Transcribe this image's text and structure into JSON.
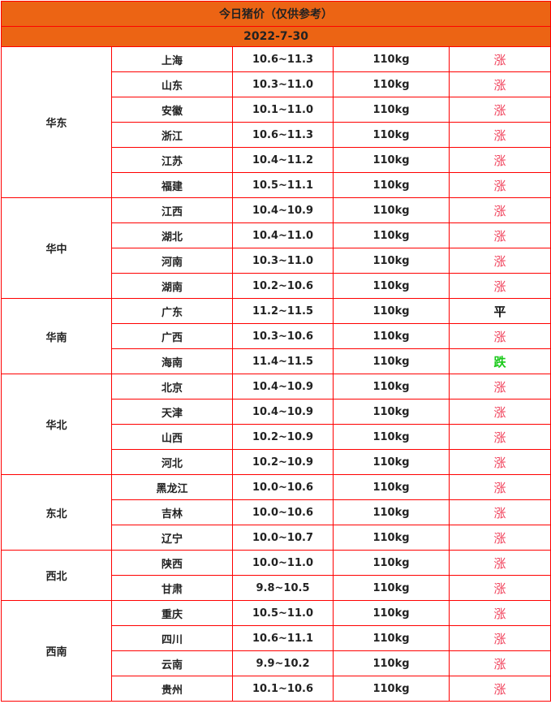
{
  "title": "今日猪价（仅供参考）",
  "date": "2022-7-30",
  "colors": {
    "header_bg": "#ec6414",
    "border": "#ff0000",
    "up": "#f0405a",
    "flat": "#111111",
    "down": "#19c919"
  },
  "regions": [
    {
      "name": "华东",
      "rows": [
        [
          "上海",
          "10.6~11.3",
          "110kg",
          "涨"
        ],
        [
          "山东",
          "10.3~11.0",
          "110kg",
          "涨"
        ],
        [
          "安徽",
          "10.1~11.0",
          "110kg",
          "涨"
        ],
        [
          "浙江",
          "10.6~11.3",
          "110kg",
          "涨"
        ],
        [
          "江苏",
          "10.4~11.2",
          "110kg",
          "涨"
        ],
        [
          "福建",
          "10.5~11.1",
          "110kg",
          "涨"
        ]
      ]
    },
    {
      "name": "华中",
      "rows": [
        [
          "江西",
          "10.4~10.9",
          "110kg",
          "涨"
        ],
        [
          "湖北",
          "10.4~11.0",
          "110kg",
          "涨"
        ],
        [
          "河南",
          "10.3~11.0",
          "110kg",
          "涨"
        ],
        [
          "湖南",
          "10.2~10.6",
          "110kg",
          "涨"
        ]
      ]
    },
    {
      "name": "华南",
      "rows": [
        [
          "广东",
          "11.2~11.5",
          "110kg",
          "平"
        ],
        [
          "广西",
          "10.3~10.6",
          "110kg",
          "涨"
        ],
        [
          "海南",
          "11.4~11.5",
          "110kg",
          "跌"
        ]
      ]
    },
    {
      "name": "华北",
      "rows": [
        [
          "北京",
          "10.4~10.9",
          "110kg",
          "涨"
        ],
        [
          "天津",
          "10.4~10.9",
          "110kg",
          "涨"
        ],
        [
          "山西",
          "10.2~10.9",
          "110kg",
          "涨"
        ],
        [
          "河北",
          "10.2~10.9",
          "110kg",
          "涨"
        ]
      ]
    },
    {
      "name": "东北",
      "rows": [
        [
          "黑龙江",
          "10.0~10.6",
          "110kg",
          "涨"
        ],
        [
          "吉林",
          "10.0~10.6",
          "110kg",
          "涨"
        ],
        [
          "辽宁",
          "10.0~10.7",
          "110kg",
          "涨"
        ]
      ]
    },
    {
      "name": "西北",
      "rows": [
        [
          "陕西",
          "10.0~11.0",
          "110kg",
          "涨"
        ],
        [
          "甘肃",
          "9.8~10.5",
          "110kg",
          "涨"
        ]
      ]
    },
    {
      "name": "西南",
      "rows": [
        [
          "重庆",
          "10.5~11.0",
          "110kg",
          "涨"
        ],
        [
          "四川",
          "10.6~11.1",
          "110kg",
          "涨"
        ],
        [
          "云南",
          "9.9~10.2",
          "110kg",
          "涨"
        ],
        [
          "贵州",
          "10.1~10.6",
          "110kg",
          "涨"
        ]
      ]
    }
  ]
}
